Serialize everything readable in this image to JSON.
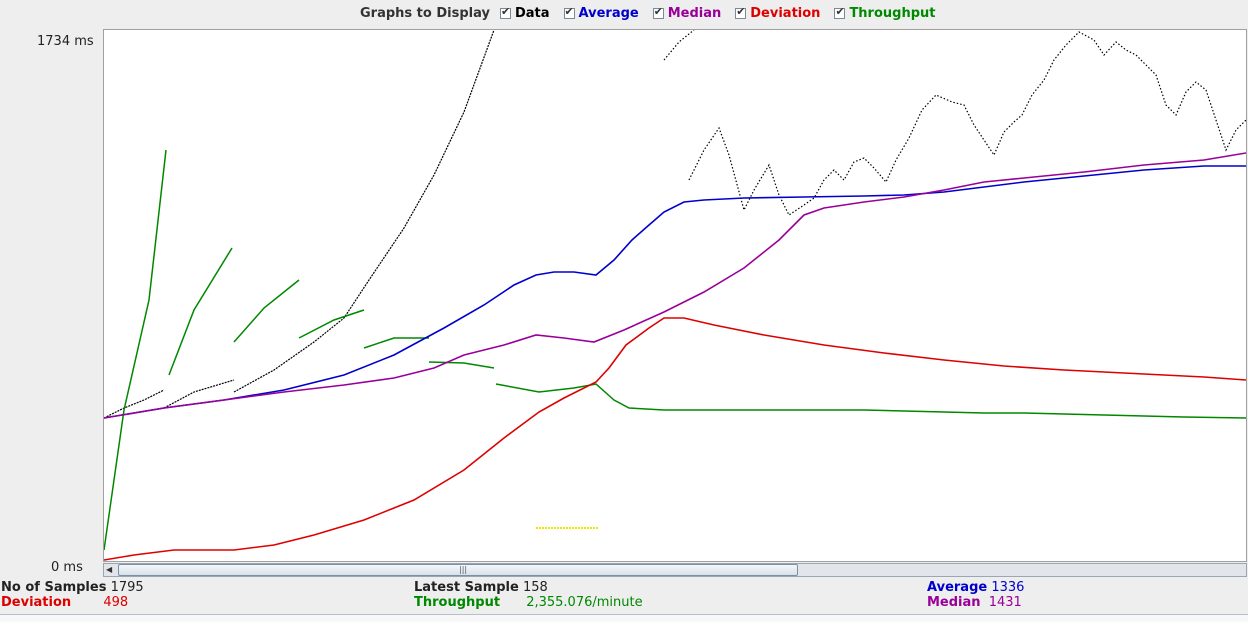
{
  "legend": {
    "label": "Graphs to Display",
    "items": [
      {
        "label": "Data",
        "color": "#000000",
        "checked": true
      },
      {
        "label": "Average",
        "color": "#0000cc",
        "checked": true
      },
      {
        "label": "Median",
        "color": "#990099",
        "checked": true
      },
      {
        "label": "Deviation",
        "color": "#dd0000",
        "checked": true
      },
      {
        "label": "Throughput",
        "color": "#008800",
        "checked": true
      }
    ]
  },
  "axis": {
    "max_label": "1734  ms",
    "min_label": "0  ms"
  },
  "stats": {
    "samples_label": "No of Samples",
    "samples_value": "1795",
    "deviation_label": "Deviation",
    "deviation_value": "498",
    "latest_label": "Latest Sample",
    "latest_value": "158",
    "throughput_label": "Throughput",
    "throughput_value": "2,355.076/minute",
    "average_label": "Average",
    "average_value": "1336",
    "median_label": "Median",
    "median_value": "1431"
  },
  "colors": {
    "data": "#000000",
    "average": "#0000cc",
    "median": "#990099",
    "deviation": "#dd0000",
    "throughput": "#008800",
    "latest": "#e8e800"
  }
}
